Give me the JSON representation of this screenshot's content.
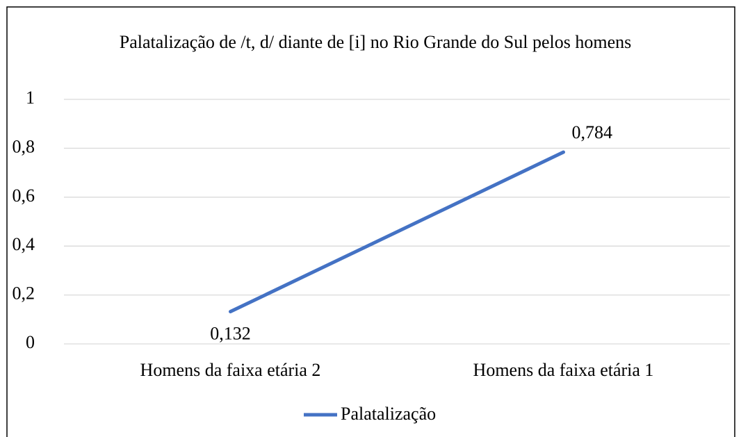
{
  "chart_data": {
    "type": "line",
    "title": "Palatalização de /t, d/ diante de [i] no Rio Grande do Sul pelos homens",
    "categories": [
      "Homens da faixa etária 2",
      "Homens da faixa etária 1"
    ],
    "series": [
      {
        "name": "Palatalização",
        "color": "#4472c4",
        "values": [
          0.132,
          0.784
        ],
        "value_labels": [
          "0,132",
          "0,784"
        ]
      }
    ],
    "ylim": [
      0,
      1
    ],
    "yticks": [
      0,
      {
        "value": 0.2,
        "label": "0,2"
      },
      {
        "value": 0.4,
        "label": "0,4"
      },
      {
        "value": 0.6,
        "label": "0,6"
      },
      {
        "value": 0.8,
        "label": "0,8"
      },
      1
    ],
    "grid": true,
    "legend": "bottom"
  }
}
